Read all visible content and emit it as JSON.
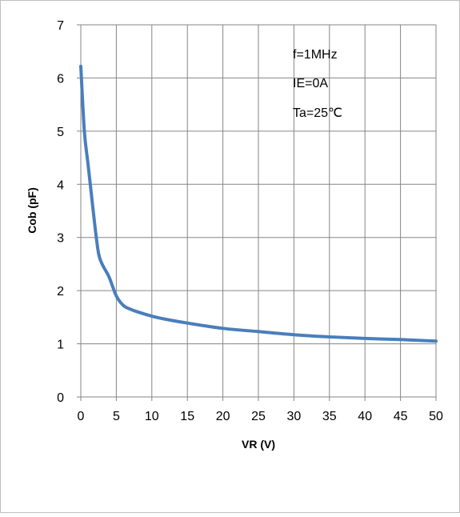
{
  "chart_data": {
    "type": "line",
    "title": "",
    "xlabel": "VR (V)",
    "ylabel": "Cob (pF)",
    "xlim": [
      0,
      50
    ],
    "ylim": [
      0,
      7
    ],
    "x_ticks": [
      "0",
      "5",
      "10",
      "15",
      "20",
      "25",
      "30",
      "35",
      "40",
      "45",
      "50"
    ],
    "y_ticks": [
      "0",
      "1",
      "2",
      "3",
      "4",
      "5",
      "6",
      "7"
    ],
    "grid": true,
    "legend": "none",
    "annotations": [
      "f=1MHz",
      "IE=0A",
      "Ta=25℃"
    ],
    "series": [
      {
        "color": "#4a7ebb",
        "x": [
          0,
          0.5,
          1,
          1.5,
          2,
          2.5,
          3,
          4,
          5,
          6,
          7,
          8,
          10,
          12,
          15,
          20,
          25,
          30,
          35,
          40,
          45,
          50
        ],
        "y": [
          6.22,
          5.0,
          4.4,
          3.8,
          3.2,
          2.7,
          2.5,
          2.25,
          1.9,
          1.72,
          1.65,
          1.6,
          1.52,
          1.46,
          1.39,
          1.29,
          1.23,
          1.17,
          1.13,
          1.1,
          1.08,
          1.05
        ]
      }
    ]
  }
}
